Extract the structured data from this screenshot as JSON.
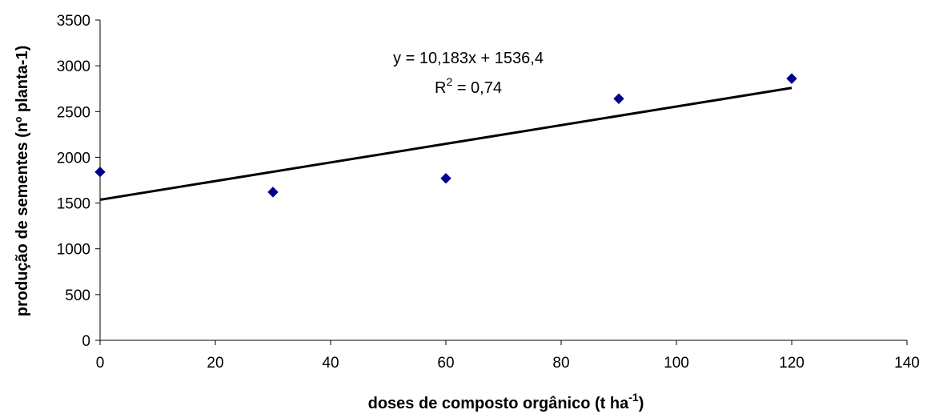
{
  "chart_data": {
    "type": "scatter",
    "xlabel": "doses de composto orgânico (t ha",
    "xlabel_sup": "-1",
    "xlabel_end": ")",
    "ylabel": "produção de sementes (nº planta-1)",
    "xlim": [
      0,
      140
    ],
    "ylim": [
      0,
      3500
    ],
    "x_ticks": [
      "0",
      "20",
      "40",
      "60",
      "80",
      "100",
      "120",
      "140"
    ],
    "y_ticks": [
      "0",
      "500",
      "1000",
      "1500",
      "2000",
      "2500",
      "3000",
      "3500"
    ],
    "grid": false,
    "series": [
      {
        "points": [
          {
            "x": 0,
            "y": 1840
          },
          {
            "x": 30,
            "y": 1620
          },
          {
            "x": 60,
            "y": 1770
          },
          {
            "x": 90,
            "y": 2640
          },
          {
            "x": 120,
            "y": 2860
          }
        ],
        "marker": "diamond",
        "color": "#00008B"
      }
    ],
    "trendline": {
      "type": "linear",
      "slope": 10.183,
      "intercept": 1536.4,
      "x_range": [
        0,
        120
      ],
      "color": "#000000"
    },
    "annotations": {
      "equation": "y = 10,183x + 1536,4",
      "r2_prefix": "R",
      "r2_sup": "2",
      "r2_value": " = 0,74"
    }
  }
}
